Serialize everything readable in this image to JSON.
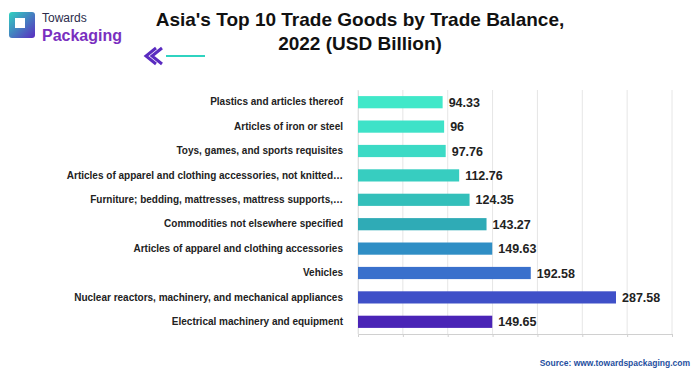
{
  "chart_data": {
    "type": "bar",
    "title": "Asia's Top 10 Trade Goods by Trade Balance,\n2022 (USD Billion)",
    "logo": [
      "Towards",
      "Packaging"
    ],
    "source": "Source: www.towardspackaging.com",
    "orientation": "horizontal",
    "categories": [
      "Plastics and articles thereof",
      "Articles of iron or steel",
      "Toys, games, and sports requisites",
      "Articles of apparel and clothing accessories, not knitted…",
      "Furniture; bedding, mattresses, mattress supports,…",
      "Commodities not elsewhere specified",
      "Articles of apparel and clothing accessories",
      "Vehicles",
      "Nuclear reactors, machinery, and mechanical appliances",
      "Electrical machinery and equipment"
    ],
    "values": [
      94.33,
      96,
      97.76,
      112.76,
      124.35,
      143.27,
      149.63,
      192.58,
      287.58,
      149.65
    ],
    "colors": [
      "#40e8c9",
      "#3ee2c8",
      "#3cdac5",
      "#37cdc0",
      "#33bfba",
      "#2fabb6",
      "#2f8ec5",
      "#3970cc",
      "#3f50c8",
      "#4a24b6"
    ],
    "xlim": [
      0,
      350
    ],
    "xticks": [
      0,
      50,
      100,
      150,
      200,
      250,
      300,
      350
    ],
    "grid": true,
    "data_labels": true,
    "tick_labels": "y"
  }
}
